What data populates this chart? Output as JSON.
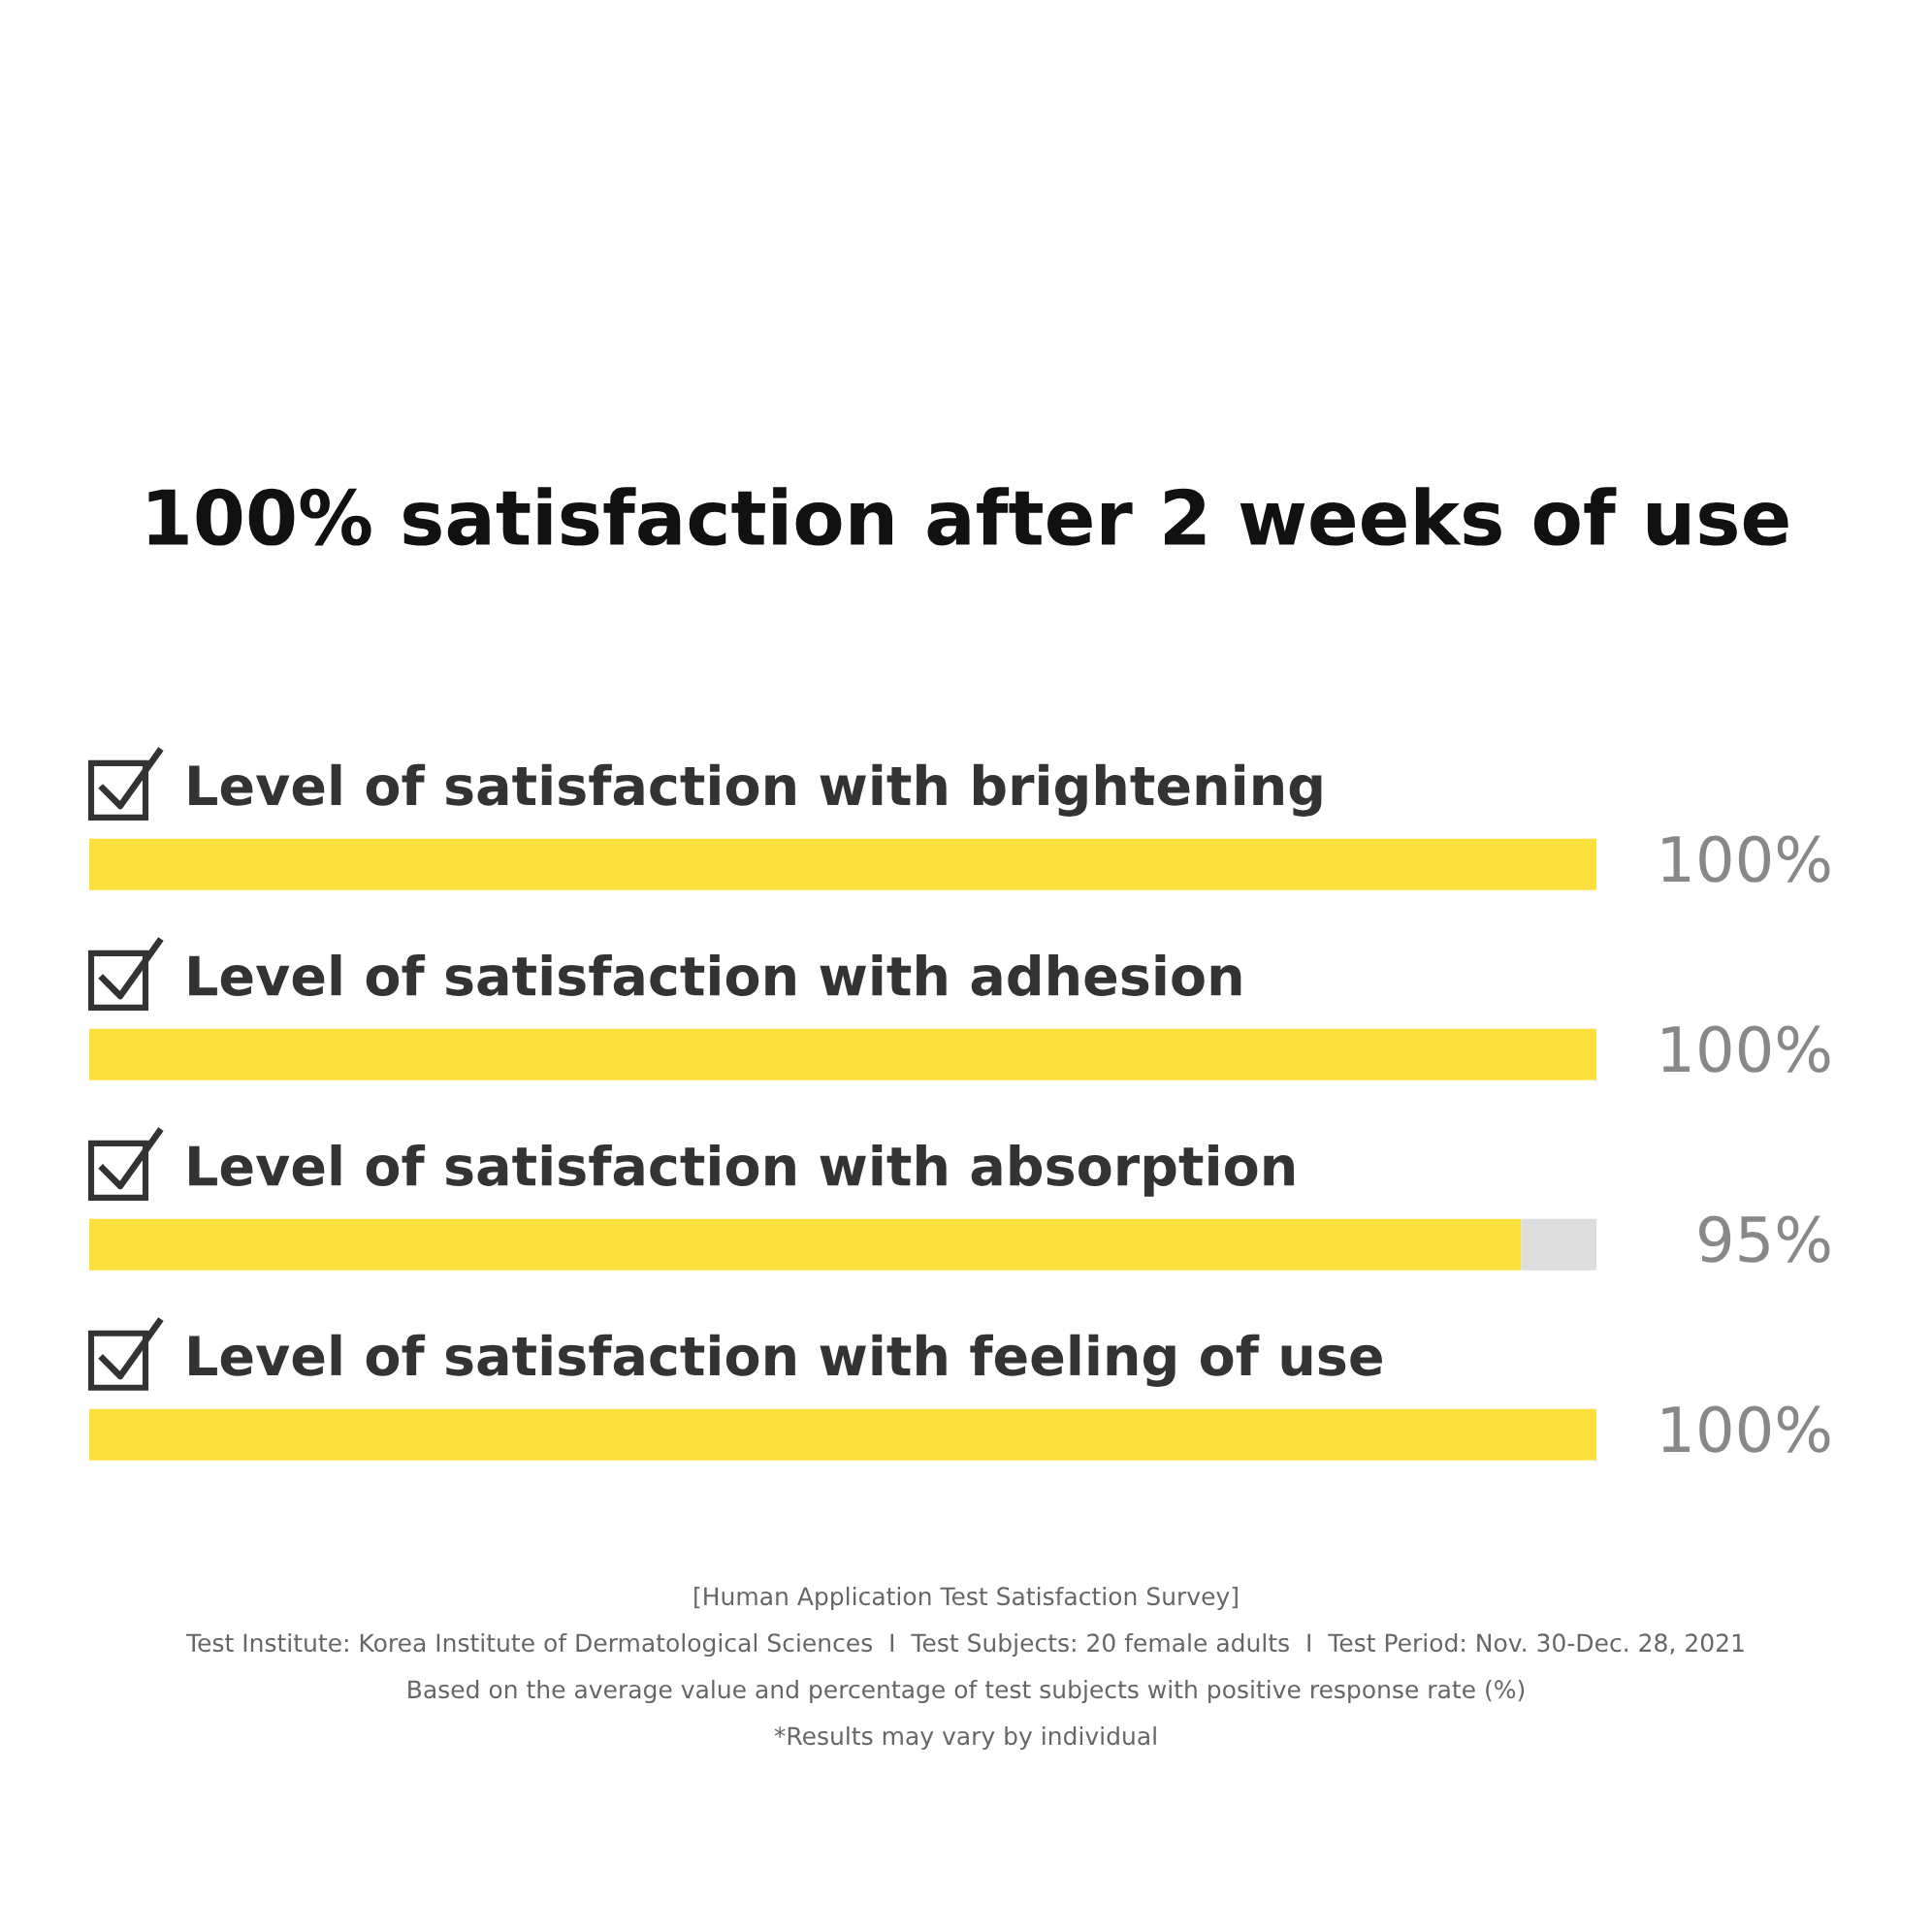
{
  "chart_data": {
    "type": "bar",
    "orientation": "horizontal",
    "stacked": true,
    "title": "100% satisfaction after 2 weeks of use",
    "categories": [
      "Level of satisfaction with brightening",
      "Level of satisfaction with adhesion",
      "Level of satisfaction with absorption",
      "Level of satisfaction with feeling of use"
    ],
    "series": [
      {
        "color": "#fce03c",
        "values": [
          100,
          100,
          95,
          100
        ],
        "value_labels": [
          "100%",
          "100%",
          "95%",
          "100%"
        ]
      },
      {
        "color": "#dddddd",
        "values": [
          0,
          0,
          5,
          0
        ]
      }
    ],
    "xlim": [
      0,
      100
    ],
    "tick_labels": false,
    "annotations": [
      "[Human Application Test Satisfaction Survey]",
      "Test Institute: Korea Institute of Dermatological Sciences  I  Test Subjects: 20 female adults  I  Test Period: Nov. 30-Dec. 28, 2021",
      "Based on the average value and percentage of test subjects with positive response rate (%)",
      "*Results may vary by individual"
    ]
  }
}
